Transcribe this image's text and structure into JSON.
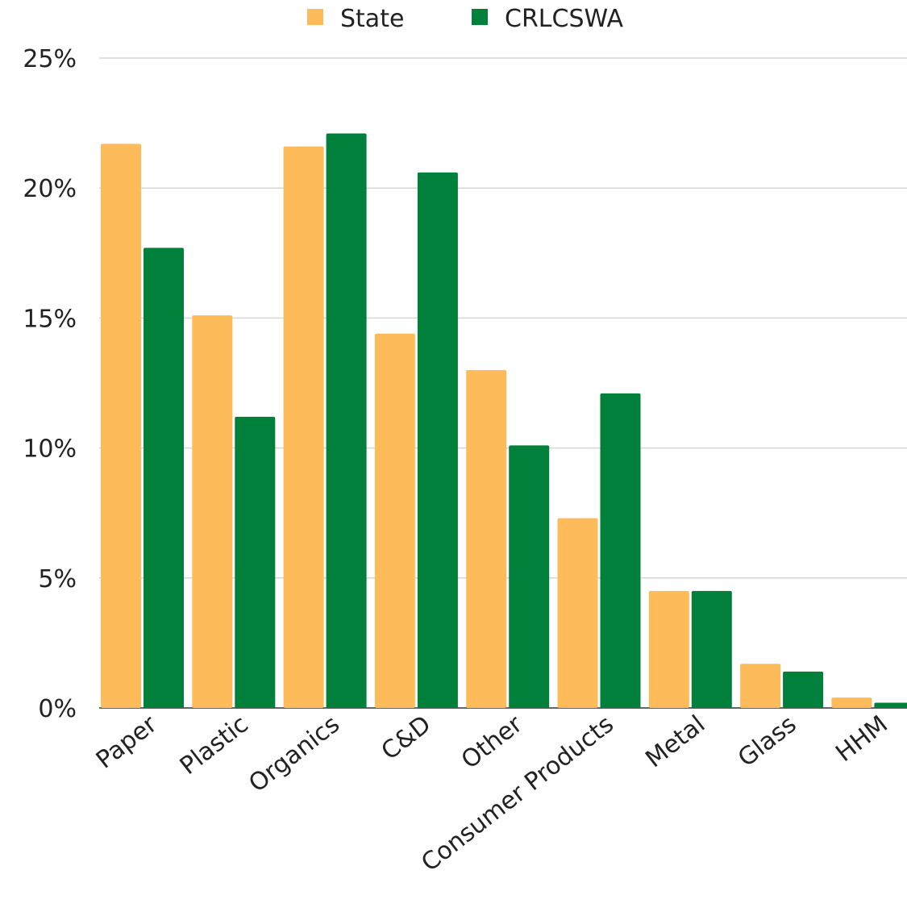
{
  "chart_data": {
    "type": "bar",
    "title": "",
    "xlabel": "",
    "ylabel": "",
    "ylim": [
      0,
      25
    ],
    "yticks": [
      0,
      5,
      10,
      15,
      20,
      25
    ],
    "ytick_suffix": "%",
    "grid": true,
    "legend_position": "top-center",
    "categories": [
      "Paper",
      "Plastic",
      "Organics",
      "C&D",
      "Other",
      "Consumer Products",
      "Metal",
      "Glass",
      "HHM"
    ],
    "series": [
      {
        "name": "State",
        "color": "#FDBB5A",
        "values": [
          21.7,
          15.1,
          21.6,
          14.4,
          13.0,
          7.3,
          4.5,
          1.7,
          0.4
        ]
      },
      {
        "name": "CRLCSWA",
        "color": "#00803A",
        "values": [
          17.7,
          11.2,
          22.1,
          20.6,
          10.1,
          12.1,
          4.5,
          1.4,
          0.2
        ]
      }
    ]
  }
}
